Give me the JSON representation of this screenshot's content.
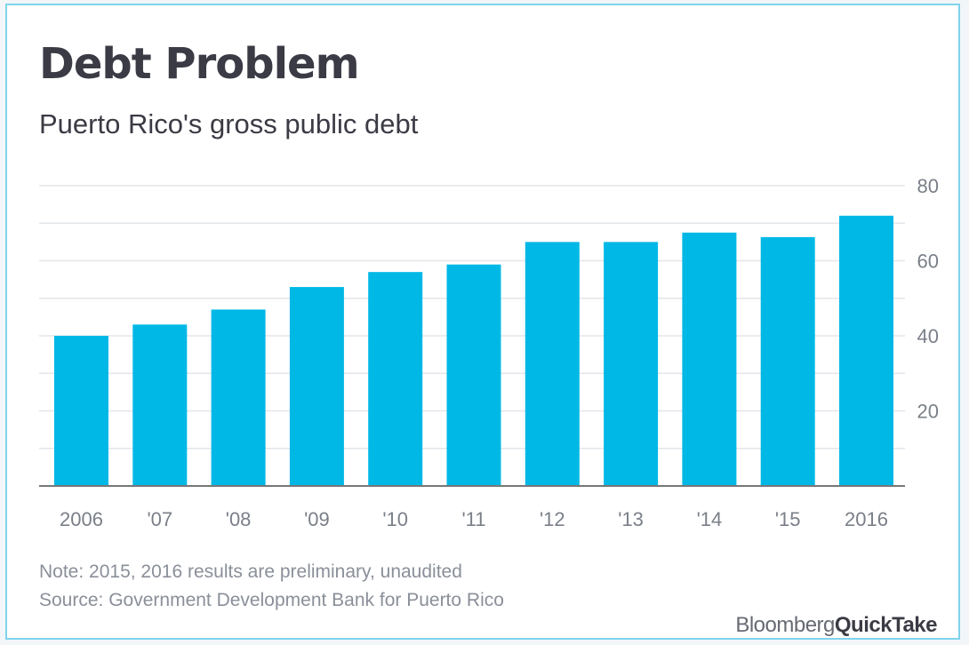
{
  "header": {
    "title": "Debt Problem",
    "subtitle": "Puerto Rico's gross public debt"
  },
  "footer": {
    "note": "Note: 2015, 2016 results are preliminary, unaudited",
    "source": "Source: Government Development Bank for Puerto Rico",
    "brand_part1": "Bloomberg",
    "brand_part2": "QuickTake"
  },
  "colors": {
    "bar": "#00b8e6",
    "grid": "#e3e6ea",
    "axis": "#777777",
    "tick_text": "#7a7f88"
  },
  "chart_data": {
    "type": "bar",
    "title": "Debt Problem",
    "subtitle": "Puerto Rico's gross public debt",
    "xlabel": "",
    "ylabel": "",
    "categories": [
      "2006",
      "'07",
      "'08",
      "'09",
      "'10",
      "'11",
      "'12",
      "'13",
      "'14",
      "'15",
      "2016"
    ],
    "values": [
      40,
      43,
      47,
      53,
      57,
      59,
      65,
      65,
      67.5,
      66.3,
      72
    ],
    "ylim": [
      0,
      80
    ],
    "yticks": [
      20,
      40,
      60,
      80
    ],
    "gridlines_every": 10,
    "grid": true,
    "y_axis_side": "right"
  }
}
